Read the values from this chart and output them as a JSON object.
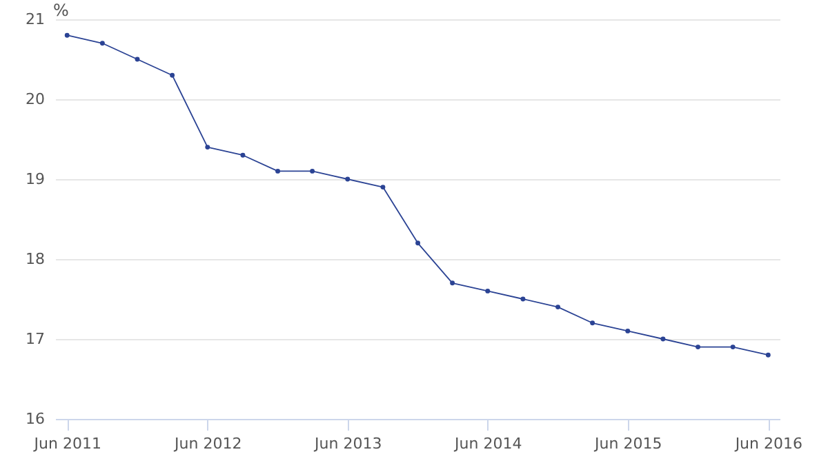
{
  "chart_data": {
    "type": "line",
    "ylabel": "%",
    "x": [
      "2011-06",
      "2011-09",
      "2011-12",
      "2012-03",
      "2012-06",
      "2012-09",
      "2012-12",
      "2013-03",
      "2013-06",
      "2013-09",
      "2013-12",
      "2014-03",
      "2014-06",
      "2014-09",
      "2014-12",
      "2015-03",
      "2015-06",
      "2015-09",
      "2015-12",
      "2016-03",
      "2016-06"
    ],
    "series": [
      {
        "color": "#2b4394",
        "values": [
          20.8,
          20.7,
          20.5,
          20.3,
          19.4,
          19.3,
          19.1,
          19.1,
          19.0,
          18.9,
          18.2,
          17.7,
          17.6,
          17.5,
          17.4,
          17.2,
          17.1,
          17.0,
          16.9,
          16.9,
          16.8
        ]
      }
    ],
    "xlim": [
      "2011-05",
      "2016-07"
    ],
    "xticks": [
      {
        "value": "2011-06",
        "label": "Jun 2011"
      },
      {
        "value": "2012-06",
        "label": "Jun 2012"
      },
      {
        "value": "2013-06",
        "label": "Jun 2013"
      },
      {
        "value": "2014-06",
        "label": "Jun 2014"
      },
      {
        "value": "2015-06",
        "label": "Jun 2015"
      },
      {
        "value": "2016-06",
        "label": "Jun 2016"
      }
    ],
    "ylim": [
      16,
      21
    ],
    "yticks": [
      16,
      17,
      18,
      19,
      20,
      21
    ],
    "grid": "y",
    "marker": "circle",
    "line_style": "solid"
  }
}
